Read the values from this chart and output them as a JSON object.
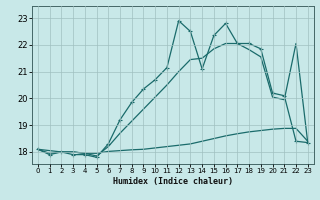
{
  "xlabel": "Humidex (Indice chaleur)",
  "background_color": "#c8e8e8",
  "grid_color": "#a0c0c0",
  "line_color": "#1a6b6b",
  "x_ticks": [
    0,
    1,
    2,
    3,
    4,
    5,
    6,
    7,
    8,
    9,
    10,
    11,
    12,
    13,
    14,
    15,
    16,
    17,
    18,
    19,
    20,
    21,
    22,
    23
  ],
  "y_ticks": [
    18,
    19,
    20,
    21,
    22,
    23
  ],
  "ylim": [
    17.55,
    23.45
  ],
  "xlim": [
    -0.5,
    23.5
  ],
  "curve1_x": [
    0,
    1,
    2,
    3,
    4,
    5,
    6,
    7,
    8,
    9,
    10,
    11,
    12,
    13,
    14,
    15,
    16,
    17,
    18,
    19,
    20,
    21,
    22,
    23
  ],
  "curve1_y": [
    18.1,
    17.9,
    18.0,
    17.9,
    17.9,
    17.8,
    18.3,
    19.2,
    19.85,
    20.35,
    20.7,
    21.15,
    22.9,
    22.5,
    21.1,
    22.35,
    22.8,
    22.05,
    22.05,
    21.85,
    20.2,
    20.1,
    18.4,
    18.35
  ],
  "curve2_x": [
    0,
    1,
    2,
    3,
    4,
    5,
    6,
    7,
    8,
    9,
    10,
    11,
    12,
    13,
    14,
    15,
    16,
    17,
    18,
    19,
    20,
    21,
    22,
    23
  ],
  "curve2_y": [
    18.1,
    18.05,
    18.0,
    18.0,
    17.95,
    17.95,
    18.02,
    18.05,
    18.08,
    18.1,
    18.15,
    18.2,
    18.25,
    18.3,
    18.4,
    18.5,
    18.6,
    18.68,
    18.75,
    18.8,
    18.85,
    18.88,
    18.88,
    18.4
  ],
  "curve3_x": [
    0,
    1,
    2,
    3,
    4,
    5,
    6,
    7,
    8,
    9,
    10,
    11,
    12,
    13,
    14,
    15,
    16,
    17,
    18,
    19,
    20,
    21,
    22,
    23
  ],
  "curve3_y": [
    18.1,
    17.95,
    18.0,
    18.0,
    17.95,
    17.85,
    18.2,
    18.7,
    19.15,
    19.6,
    20.05,
    20.5,
    21.0,
    21.45,
    21.5,
    21.85,
    22.05,
    22.05,
    21.82,
    21.55,
    20.05,
    19.95,
    22.05,
    18.35
  ]
}
